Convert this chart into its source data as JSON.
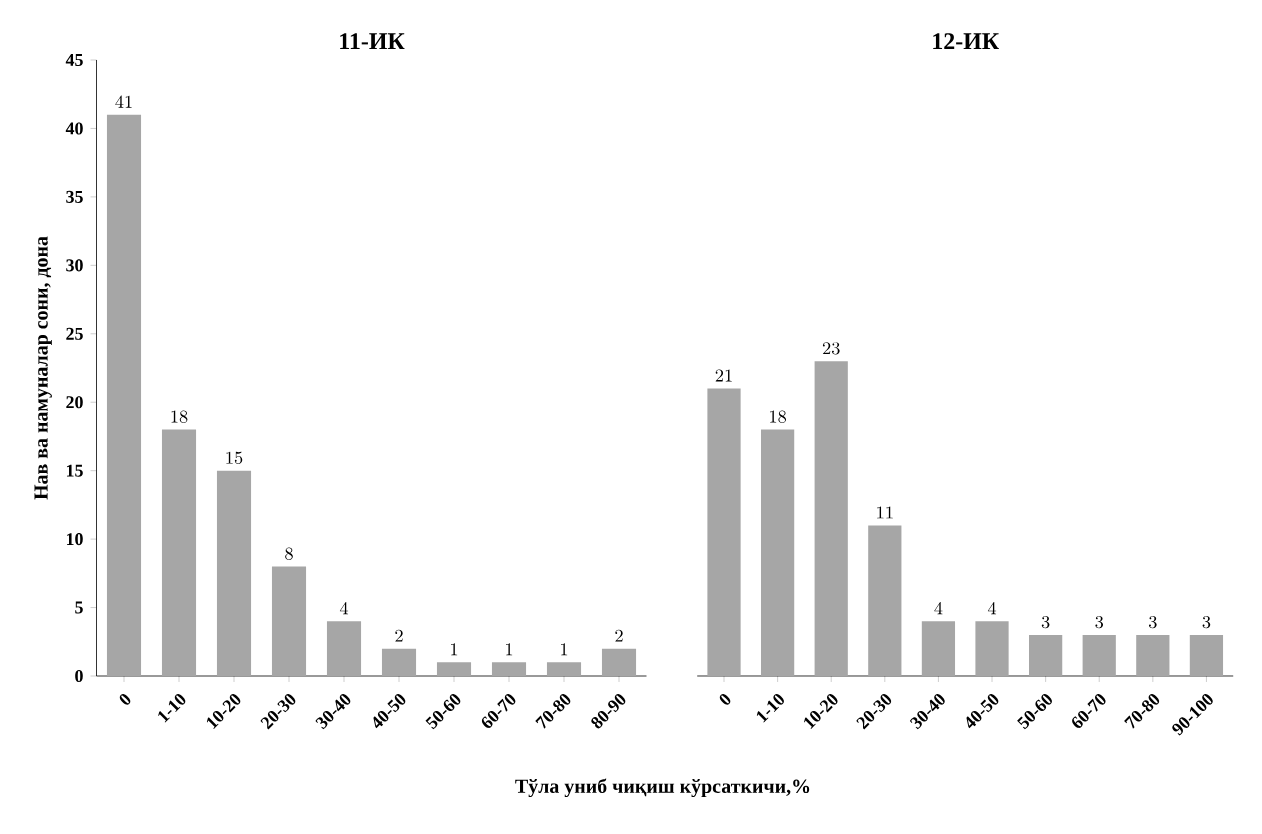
{
  "chart_data": [
    {
      "type": "bar",
      "title": "11-ИК",
      "ylabel": "Нав ва намуналар сони, дона",
      "xlabel": "Тўла униб чиқиш кўрсаткичи,%",
      "categories": [
        "0",
        "1-10",
        "10-20",
        "20-30",
        "30-40",
        "40-50",
        "50-60",
        "60-70",
        "70-80",
        "80-90"
      ],
      "values": [
        41,
        18,
        15,
        8,
        4,
        2,
        1,
        1,
        1,
        2
      ],
      "color": "#a6a6a6",
      "data_labels": true,
      "ylim": [
        0,
        45
      ],
      "yticks": [
        0,
        5,
        10,
        15,
        20,
        25,
        30,
        35,
        40,
        45
      ],
      "grid": false
    },
    {
      "type": "bar",
      "title": "12-ИК",
      "categories": [
        "0",
        "1-10",
        "10-20",
        "20-30",
        "30-40",
        "40-50",
        "50-60",
        "60-70",
        "70-80",
        "90-100"
      ],
      "values": [
        21,
        18,
        23,
        11,
        4,
        4,
        3,
        3,
        3,
        3
      ],
      "color": "#a6a6a6",
      "data_labels": true,
      "ylim": [
        0,
        45
      ],
      "yticks": [
        0,
        5,
        10,
        15,
        20,
        25,
        30,
        35,
        40,
        45
      ],
      "grid": false,
      "tick_labels": "x"
    }
  ]
}
